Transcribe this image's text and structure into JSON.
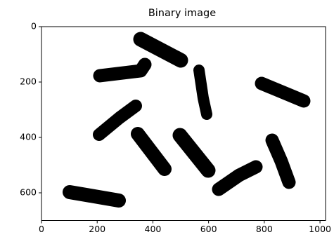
{
  "chart_data": {
    "type": "image",
    "title": "Binary image",
    "xlim": [
      0,
      1020
    ],
    "ylim": [
      0,
      700
    ],
    "xticks": [
      0,
      200,
      400,
      600,
      800,
      1000
    ],
    "yticks": [
      0,
      200,
      400,
      600
    ]
  }
}
